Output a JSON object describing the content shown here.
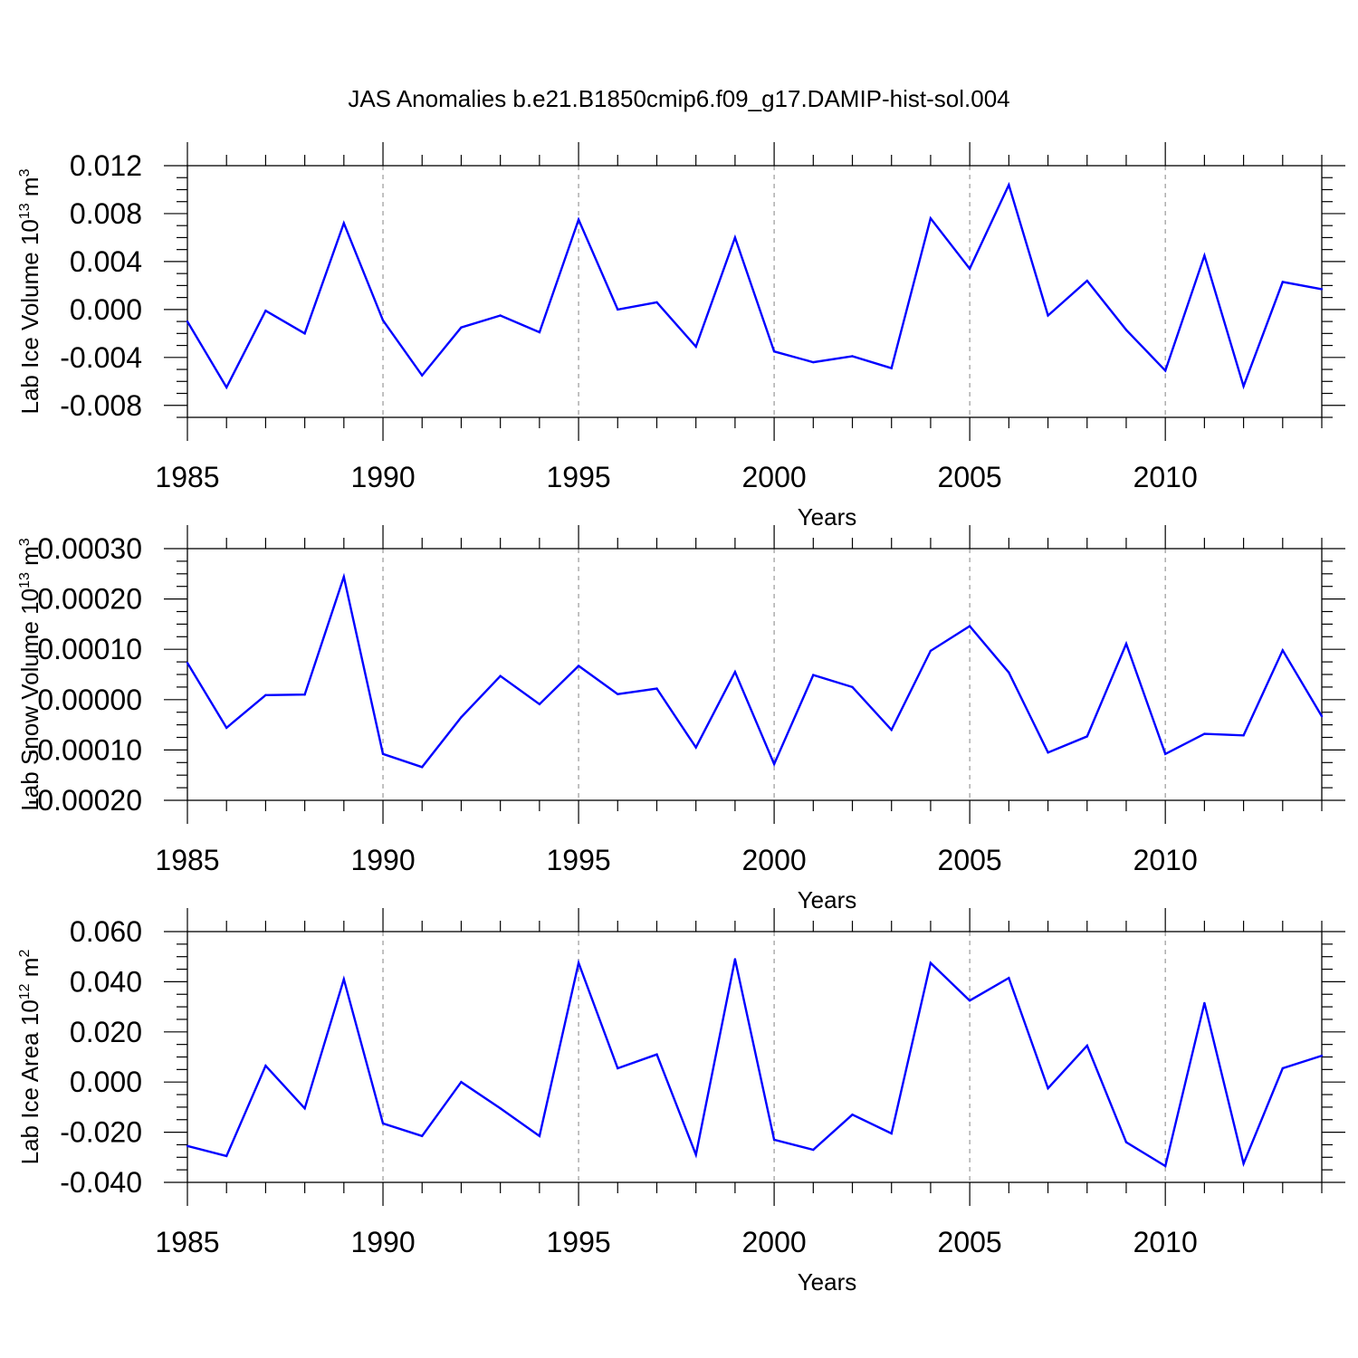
{
  "title": "JAS Anomalies b.e21.B1850cmip6.f09_g17.DAMIP-hist-sol.004",
  "colors": {
    "line": "#0000ff",
    "axes": "#000000",
    "grid": "#999999"
  },
  "chart_data": [
    {
      "type": "line",
      "ylabel": "Lab Ice Volume 10",
      "ylabel_exp": "13",
      "ylabel_unit": " m",
      "ylabel_unit_exp": "3",
      "xlabel": "Years",
      "xlim": [
        1985,
        2014
      ],
      "ylim": [
        -0.009,
        0.012
      ],
      "yticks": [
        -0.008,
        -0.004,
        0.0,
        0.004,
        0.008,
        0.012
      ],
      "ytick_labels": [
        "-0.008",
        "-0.004",
        "0.000",
        "0.004",
        "0.008",
        "0.012"
      ],
      "xticks": [
        1985,
        1990,
        1995,
        2000,
        2005,
        2010
      ],
      "xtick_labels": [
        "1985",
        "1990",
        "1995",
        "2000",
        "2005",
        "2010"
      ],
      "grid_x": [
        1990,
        1995,
        2000,
        2005,
        2010
      ],
      "x": [
        1985,
        1986,
        1987,
        1988,
        1989,
        1990,
        1991,
        1992,
        1993,
        1994,
        1995,
        1996,
        1997,
        1998,
        1999,
        2000,
        2001,
        2002,
        2003,
        2004,
        2005,
        2006,
        2007,
        2008,
        2009,
        2010,
        2011,
        2012,
        2013,
        2014
      ],
      "values": [
        -0.001,
        -0.0065,
        -0.0001,
        -0.002,
        0.0072,
        -0.0009,
        -0.0055,
        -0.0015,
        -0.0005,
        -0.0019,
        0.0075,
        0.0,
        0.0006,
        -0.0031,
        0.006,
        -0.0035,
        -0.0044,
        -0.0039,
        -0.0049,
        0.0076,
        0.0034,
        0.0104,
        -0.0005,
        0.0024,
        -0.0017,
        -0.0051,
        0.0045,
        -0.0064,
        0.0023,
        0.0017
      ]
    },
    {
      "type": "line",
      "ylabel": "Lab Snow Volume 10",
      "ylabel_exp": "13",
      "ylabel_unit": " m",
      "ylabel_unit_exp": "3",
      "xlabel": "Years",
      "xlim": [
        1985,
        2014
      ],
      "ylim": [
        -0.0002,
        0.0003
      ],
      "yticks": [
        -0.0002,
        -0.0001,
        0.0,
        0.0001,
        0.0002,
        0.0003
      ],
      "ytick_labels": [
        "-0.00020",
        "-0.00010",
        "0.00000",
        "0.00010",
        "0.00020",
        "0.00030"
      ],
      "xticks": [
        1985,
        1990,
        1995,
        2000,
        2005,
        2010
      ],
      "xtick_labels": [
        "1985",
        "1990",
        "1995",
        "2000",
        "2005",
        "2010"
      ],
      "grid_x": [
        1990,
        1995,
        2000,
        2005,
        2010
      ],
      "x": [
        1985,
        1986,
        1987,
        1988,
        1989,
        1990,
        1991,
        1992,
        1993,
        1994,
        1995,
        1996,
        1997,
        1998,
        1999,
        2000,
        2001,
        2002,
        2003,
        2004,
        2005,
        2006,
        2007,
        2008,
        2009,
        2010,
        2011,
        2012,
        2013,
        2014
      ],
      "values": [
        7.3e-05,
        -5.6e-05,
        9e-06,
        1e-05,
        0.000244,
        -0.000108,
        -0.000134,
        -3.5e-05,
        4.7e-05,
        -9e-06,
        6.7e-05,
        1.1e-05,
        2.2e-05,
        -9.5e-05,
        5.5e-05,
        -0.000128,
        4.9e-05,
        2.5e-05,
        -6e-05,
        9.7e-05,
        0.000146,
        5.4e-05,
        -0.000105,
        -7.3e-05,
        0.000111,
        -0.000108,
        -6.8e-05,
        -7.1e-05,
        9.8e-05,
        -3.3e-05
      ]
    },
    {
      "type": "line",
      "ylabel": "Lab Ice Area 10",
      "ylabel_exp": "12",
      "ylabel_unit": " m",
      "ylabel_unit_exp": "2",
      "xlabel": "Years",
      "xlim": [
        1985,
        2014
      ],
      "ylim": [
        -0.04,
        0.06
      ],
      "yticks": [
        -0.04,
        -0.02,
        0.0,
        0.02,
        0.04,
        0.06
      ],
      "ytick_labels": [
        "-0.040",
        "-0.020",
        "0.000",
        "0.020",
        "0.040",
        "0.060"
      ],
      "xticks": [
        1985,
        1990,
        1995,
        2000,
        2005,
        2010
      ],
      "xtick_labels": [
        "1985",
        "1990",
        "1995",
        "2000",
        "2005",
        "2010"
      ],
      "grid_x": [
        1990,
        1995,
        2000,
        2005,
        2010
      ],
      "x": [
        1985,
        1986,
        1987,
        1988,
        1989,
        1990,
        1991,
        1992,
        1993,
        1994,
        1995,
        1996,
        1997,
        1998,
        1999,
        2000,
        2001,
        2002,
        2003,
        2004,
        2005,
        2006,
        2007,
        2008,
        2009,
        2010,
        2011,
        2012,
        2013,
        2014
      ],
      "values": [
        -0.0255,
        -0.0295,
        0.0065,
        -0.0105,
        0.041,
        -0.0165,
        -0.0215,
        0.0,
        -0.0105,
        -0.0215,
        0.0475,
        0.0055,
        0.011,
        -0.029,
        0.049,
        -0.023,
        -0.027,
        -0.013,
        -0.0205,
        0.0475,
        0.0325,
        0.0415,
        -0.0025,
        0.0145,
        -0.024,
        -0.0335,
        0.0315,
        -0.0325,
        0.0055,
        0.0105
      ]
    }
  ]
}
